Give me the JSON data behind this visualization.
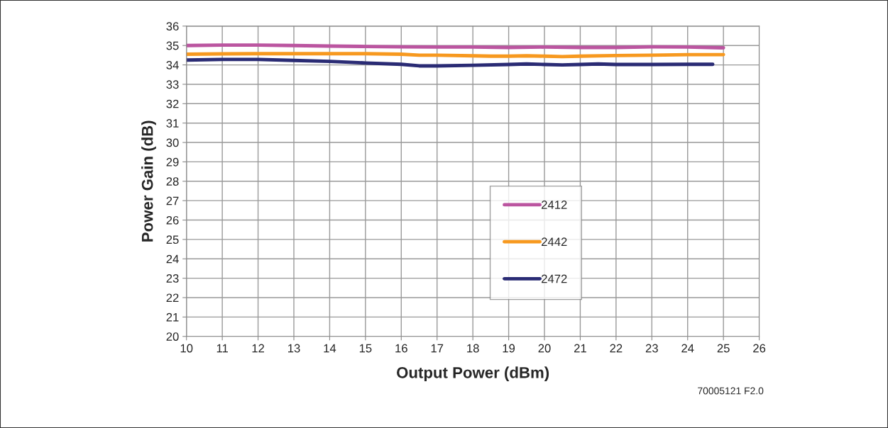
{
  "chart_data": {
    "type": "line",
    "xlabel": "Output Power (dBm)",
    "ylabel": "Power Gain (dB)",
    "xlim": [
      10,
      26
    ],
    "xticks": [
      10,
      11,
      12,
      13,
      14,
      15,
      16,
      17,
      18,
      19,
      20,
      21,
      22,
      23,
      24,
      25,
      26
    ],
    "ylim": [
      20,
      36
    ],
    "yticks": [
      20,
      21,
      22,
      23,
      24,
      25,
      26,
      27,
      28,
      29,
      30,
      31,
      32,
      33,
      34,
      35,
      36
    ],
    "grid": true,
    "legend": "bottom",
    "marker": "none",
    "line_style": "solid",
    "annotations": [
      "70005121 F2.0"
    ],
    "series": [
      {
        "name": "2412",
        "color": "#bb55a0",
        "x": [
          10,
          11,
          12,
          13,
          14,
          15,
          16,
          17,
          18,
          19,
          20,
          21,
          22,
          23,
          24,
          25
        ],
        "values": [
          35.0,
          35.02,
          35.02,
          35.0,
          34.97,
          34.95,
          34.93,
          34.92,
          34.92,
          34.9,
          34.92,
          34.9,
          34.9,
          34.93,
          34.92,
          34.88
        ]
      },
      {
        "name": "2442",
        "color": "#f7991f",
        "x": [
          10,
          11,
          12,
          13,
          14,
          15,
          16,
          16.5,
          17,
          18,
          18.5,
          19,
          19.5,
          20,
          20.5,
          21,
          22,
          23,
          24,
          25
        ],
        "values": [
          34.55,
          34.57,
          34.58,
          34.58,
          34.58,
          34.58,
          34.55,
          34.5,
          34.5,
          34.47,
          34.45,
          34.45,
          34.47,
          34.45,
          34.43,
          34.45,
          34.48,
          34.5,
          34.53,
          34.53
        ]
      },
      {
        "name": "2472",
        "color": "#2a2b74",
        "x": [
          10,
          11,
          12,
          13,
          14,
          15,
          16,
          16.5,
          17,
          18,
          19,
          19.5,
          20,
          20.5,
          21,
          21.5,
          22,
          23,
          24,
          24.7
        ],
        "values": [
          34.25,
          34.28,
          34.28,
          34.23,
          34.18,
          34.1,
          34.03,
          33.95,
          33.95,
          33.98,
          34.02,
          34.05,
          34.02,
          34.0,
          34.02,
          34.05,
          34.02,
          34.02,
          34.03,
          34.03
        ]
      }
    ]
  }
}
